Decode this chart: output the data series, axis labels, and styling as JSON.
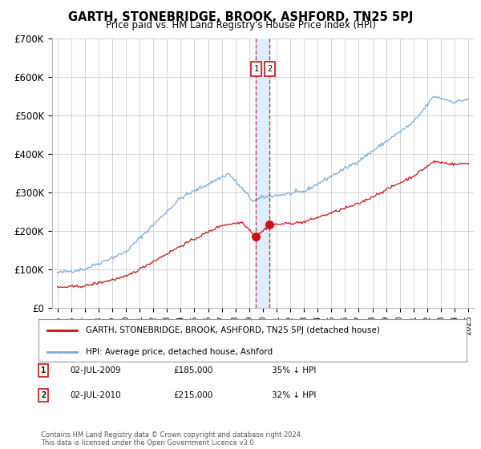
{
  "title": "GARTH, STONEBRIDGE, BROOK, ASHFORD, TN25 5PJ",
  "subtitle": "Price paid vs. HM Land Registry's House Price Index (HPI)",
  "ylim": [
    0,
    700000
  ],
  "yticks": [
    0,
    100000,
    200000,
    300000,
    400000,
    500000,
    600000,
    700000
  ],
  "ytick_labels": [
    "£0",
    "£100K",
    "£200K",
    "£300K",
    "£400K",
    "£500K",
    "£600K",
    "£700K"
  ],
  "xlim_start": 1994.6,
  "xlim_end": 2025.4,
  "hpi_color": "#7aaadd",
  "price_color": "#cc1111",
  "sale1_year": 2009.5,
  "sale1_price": 185000,
  "sale1_label": "1",
  "sale2_year": 2010.5,
  "sale2_price": 215000,
  "sale2_label": "2",
  "legend_property": "GARTH, STONEBRIDGE, BROOK, ASHFORD, TN25 5PJ (detached house)",
  "legend_hpi": "HPI: Average price, detached house, Ashford",
  "note1_label": "1",
  "note1_date": "02-JUL-2009",
  "note1_price": "£185,000",
  "note1_hpi": "35% ↓ HPI",
  "note2_label": "2",
  "note2_date": "02-JUL-2010",
  "note2_price": "£215,000",
  "note2_hpi": "32% ↓ HPI",
  "copyright": "Contains HM Land Registry data © Crown copyright and database right 2024.\nThis data is licensed under the Open Government Licence v3.0.",
  "background_color": "#ffffff",
  "grid_color": "#cccccc",
  "shade_color": "#ddeeff"
}
